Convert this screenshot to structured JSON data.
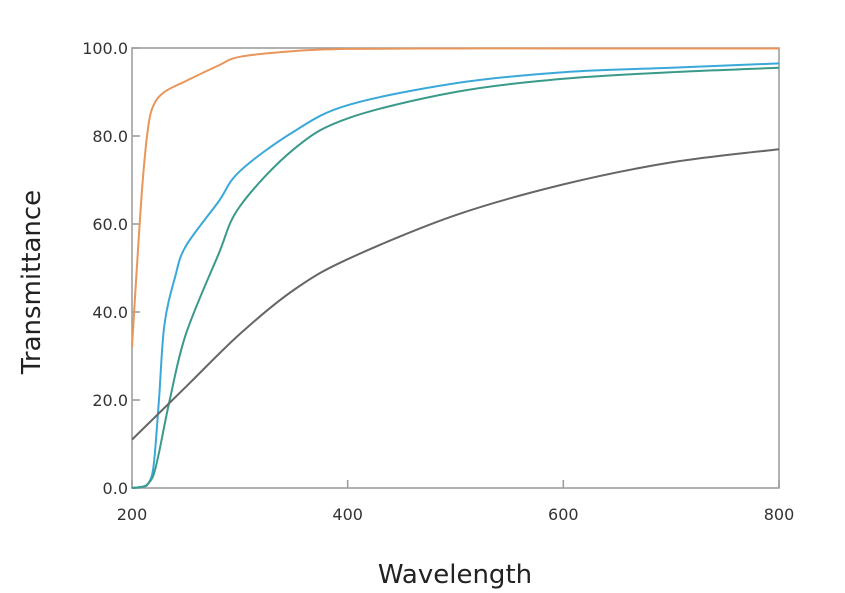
{
  "chart_data": {
    "type": "line",
    "title": "",
    "xlabel": "Wavelength",
    "ylabel": "Transmittance",
    "xlim": [
      200,
      800
    ],
    "ylim": [
      0,
      100
    ],
    "xticks": [
      200,
      400,
      600,
      800
    ],
    "xtick_labels": [
      "200",
      "400",
      "600",
      "800"
    ],
    "yticks": [
      0,
      20,
      40,
      60,
      80,
      100
    ],
    "ytick_labels": [
      "0.0",
      "20.0",
      "40.0",
      "60.0",
      "80.0",
      "100.0"
    ],
    "grid": false,
    "legend": "none",
    "series": [
      {
        "color": "#e8965a",
        "x": [
          200,
          205,
          210,
          215,
          220,
          230,
          250,
          280,
          300,
          350,
          400,
          500,
          600,
          800
        ],
        "y": [
          32,
          52,
          70,
          82,
          87,
          90,
          92.5,
          96,
          98,
          99.3,
          99.8,
          99.9,
          99.9,
          99.9
        ]
      },
      {
        "color": "#3aa8d8",
        "x": [
          200,
          210,
          215,
          220,
          225,
          230,
          240,
          250,
          280,
          300,
          350,
          400,
          500,
          600,
          700,
          800
        ],
        "y": [
          0,
          0.3,
          1,
          5,
          20,
          37,
          48,
          55,
          65,
          72,
          81,
          87,
          92,
          94.5,
          95.5,
          96.5
        ]
      },
      {
        "color": "#3a9a8a",
        "x": [
          200,
          210,
          215,
          220,
          225,
          235,
          250,
          280,
          300,
          350,
          400,
          500,
          600,
          700,
          800
        ],
        "y": [
          0,
          0.3,
          1,
          3,
          8,
          20,
          35,
          53,
          64,
          77,
          84,
          90,
          93,
          94.5,
          95.5
        ]
      },
      {
        "color": "#666666",
        "x": [
          200,
          250,
          300,
          350,
          400,
          500,
          600,
          700,
          800
        ],
        "y": [
          11,
          23,
          35,
          45,
          52,
          62,
          69,
          74,
          77
        ]
      }
    ]
  }
}
